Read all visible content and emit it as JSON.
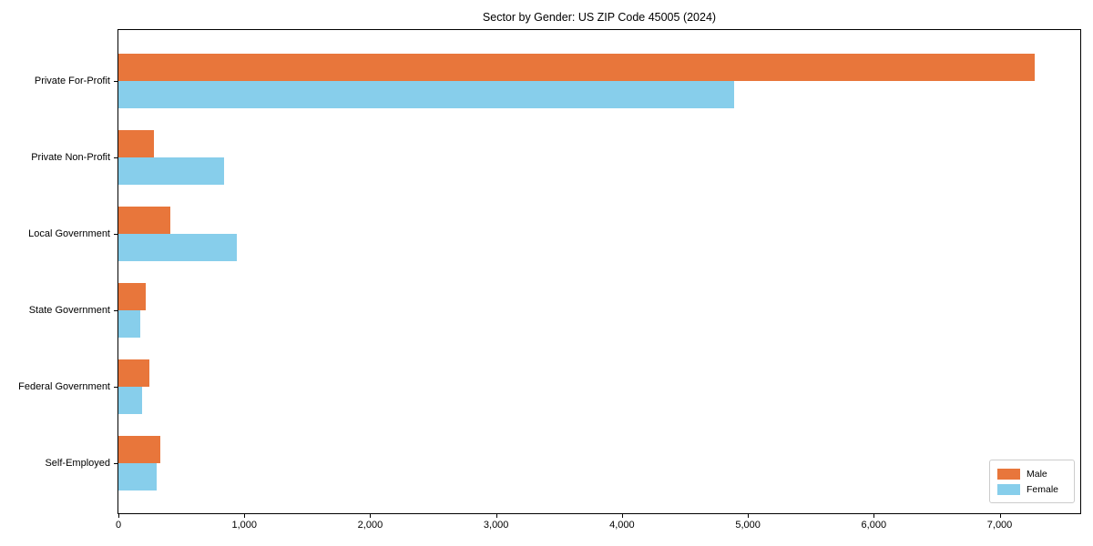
{
  "chart_data": {
    "type": "bar",
    "orientation": "horizontal",
    "title": "Sector by Gender: US ZIP Code 45005 (2024)",
    "categories": [
      "Private For-Profit",
      "Private Non-Profit",
      "Local Government",
      "State Government",
      "Federal Government",
      "Self-Employed"
    ],
    "series": [
      {
        "name": "Male",
        "color": "#e8763b",
        "values": [
          7275,
          280,
          410,
          215,
          245,
          335
        ]
      },
      {
        "name": "Female",
        "color": "#87ceeb",
        "values": [
          4890,
          840,
          940,
          170,
          190,
          300
        ]
      }
    ],
    "xlabel": "",
    "ylabel": "",
    "xlim": [
      0,
      7640
    ],
    "xtick_values": [
      0,
      1000,
      2000,
      3000,
      4000,
      5000,
      6000,
      7000
    ],
    "xtick_labels": [
      "0",
      "1,000",
      "2,000",
      "3,000",
      "4,000",
      "5,000",
      "6,000",
      "7,000"
    ],
    "legend": {
      "position": "lower-right",
      "entries": [
        "Male",
        "Female"
      ]
    },
    "grid": false
  },
  "colors": {
    "background": "#ffffff",
    "spine": "#000000",
    "text": "#000000",
    "legend_border": "#cccccc"
  }
}
